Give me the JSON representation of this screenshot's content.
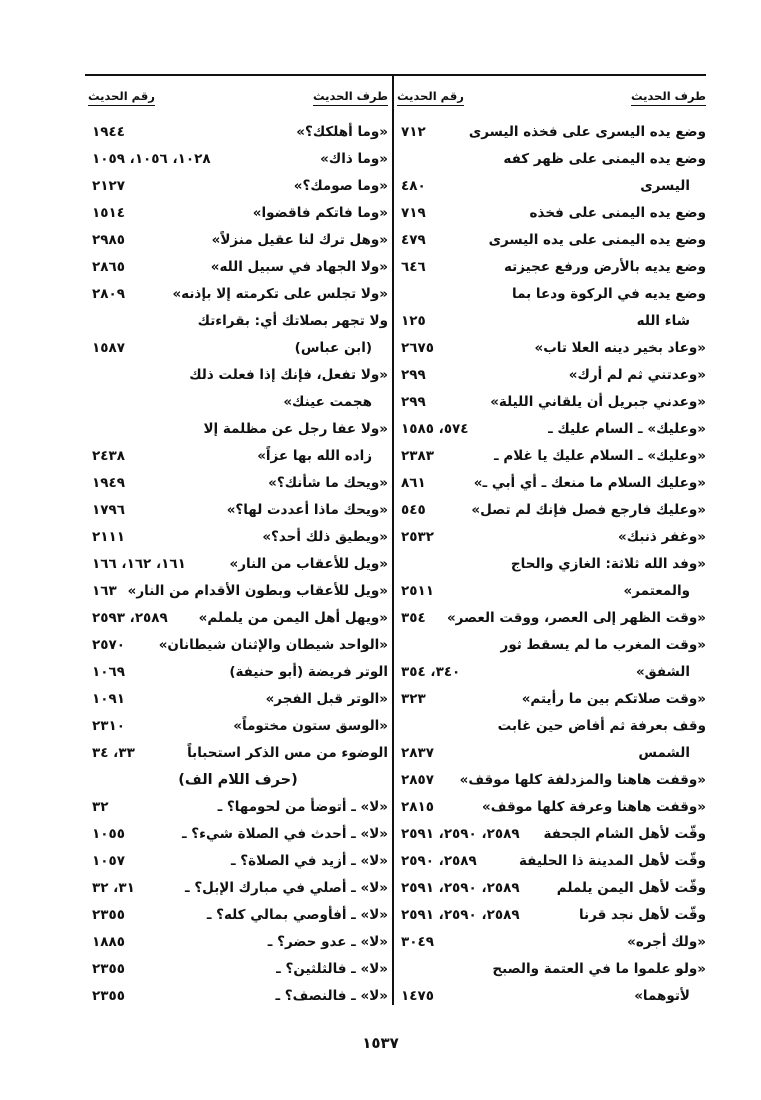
{
  "header": {
    "col_text": "طرف الحديث",
    "col_number": "رقم الحديث"
  },
  "right_column": [
    {
      "lines": [
        "وضع يده اليسرى على فخذه اليسرى"
      ],
      "number": "٧١٢"
    },
    {
      "lines": [
        "وضع يده اليمنى على ظهر كفه",
        "اليسرى"
      ],
      "number": "٤٨٠"
    },
    {
      "lines": [
        "وضع يده اليمنى على فخذه"
      ],
      "number": "٧١٩"
    },
    {
      "lines": [
        "وضع يده اليمنى على يده اليسرى"
      ],
      "number": "٤٧٩"
    },
    {
      "lines": [
        "وضع يديه بالأرض ورفع عجيزته"
      ],
      "number": "٦٤٦"
    },
    {
      "lines": [
        "وضع يديه في الركوة ودعا بما",
        "شاء الله"
      ],
      "number": "١٢٥"
    },
    {
      "lines": [
        "«وعاد بخير دينه العلا تاب»"
      ],
      "number": "٢٦٧٥"
    },
    {
      "lines": [
        "«وعدتني ثم لم أرك»"
      ],
      "number": "٢٩٩"
    },
    {
      "lines": [
        "«وعدني جبريل أن يلقاني الليلة»"
      ],
      "number": "٢٩٩"
    },
    {
      "lines": [
        "«وعليك» ـ السام عليك ـ"
      ],
      "number": "٥٧٤، ١٥٨٥"
    },
    {
      "lines": [
        "«وعليك» ـ السلام عليك يا غلام ـ"
      ],
      "number": "٢٣٨٣"
    },
    {
      "lines": [
        "«وعليك السلام ما منعك ـ أي أبي ـ»"
      ],
      "number": "٨٦١"
    },
    {
      "lines": [
        "«وعليك فارجع فصل فإنك لم تصل»"
      ],
      "number": "٥٤٥"
    },
    {
      "lines": [
        "«وغفر ذنبك»"
      ],
      "number": "٢٥٣٢"
    },
    {
      "lines": [
        "«وفد الله ثلاثة: الغازي والحاج",
        "والمعتمر»"
      ],
      "number": "٢٥١١"
    },
    {
      "lines": [
        "«وقت الظهر إلى العصر، ووقت العصر»"
      ],
      "number": "٣٥٤"
    },
    {
      "lines": [
        "«وقت المغرب ما لم يسقط ثور",
        "الشفق»"
      ],
      "number": "٣٤٠، ٣٥٤"
    },
    {
      "lines": [
        "«وقت صلاتكم بين ما رأيتم»"
      ],
      "number": "٣٢٣"
    },
    {
      "lines": [
        "وقف بعرفة ثم أفاض حين غابت",
        "الشمس"
      ],
      "number": "٢٨٣٧"
    },
    {
      "lines": [
        "«وقفت هاهنا والمزدلفة كلها موقف»"
      ],
      "number": "٢٨٥٧"
    },
    {
      "lines": [
        "«وقفت هاهنا وعرفة كلها موقف»"
      ],
      "number": "٢٨١٥"
    },
    {
      "lines": [
        "وقّت لأهل الشام الجحفة"
      ],
      "number": "٢٥٨٩، ٢٥٩٠، ٢٥٩١"
    },
    {
      "lines": [
        "وقّت لأهل المدينة ذا الحليفة"
      ],
      "number": "٢٥٨٩، ٢٥٩٠"
    },
    {
      "lines": [
        "وقّت لأهل اليمن يلملم"
      ],
      "number": "٢٥٨٩، ٢٥٩٠، ٢٥٩١"
    },
    {
      "lines": [
        "وقّت لأهل نجد قرنا"
      ],
      "number": "٢٥٨٩، ٢٥٩٠، ٢٥٩١"
    },
    {
      "lines": [
        "«ولك أجره»"
      ],
      "number": "٣٠٤٩"
    },
    {
      "lines": [
        "«ولو علموا ما في العتمة والصبح",
        "لأتوهما»"
      ],
      "number": "١٤٧٥"
    }
  ],
  "left_column": [
    {
      "lines": [
        "«وما أهلكك؟»"
      ],
      "number": "١٩٤٤"
    },
    {
      "lines": [
        "«وما ذاك»"
      ],
      "number": "١٠٢٨، ١٠٥٦، ١٠٥٩"
    },
    {
      "lines": [
        "«وما صومك؟»"
      ],
      "number": "٢١٢٧"
    },
    {
      "lines": [
        "«وما فاتكم فاقضوا»"
      ],
      "number": "١٥١٤"
    },
    {
      "lines": [
        "«وهل ترك لنا عقيل منزلاً»"
      ],
      "number": "٢٩٨٥"
    },
    {
      "lines": [
        "«ولا الجهاد في سبيل الله»"
      ],
      "number": "٢٨٦٥"
    },
    {
      "lines": [
        "«ولا تجلس على تكرمته إلا بإذنه»"
      ],
      "number": "٢٨٠٩"
    },
    {
      "lines": [
        "ولا تجهر بصلاتك أي: بقراءتك",
        "(ابن عباس)"
      ],
      "number": "١٥٨٧"
    },
    {
      "lines": [
        "«ولا تفعل، فإنك إذا فعلت ذلك",
        "هجمت عينك»"
      ],
      "number": ""
    },
    {
      "lines": [
        "«ولا عفا رجل عن مظلمة إلا",
        "زاده الله بها عزاً»"
      ],
      "number": "٢٤٣٨"
    },
    {
      "lines": [
        "«ويحك ما شأنك؟»"
      ],
      "number": "١٩٤٩"
    },
    {
      "lines": [
        "«ويحك ماذا أعددت لها؟»"
      ],
      "number": "١٧٩٦"
    },
    {
      "lines": [
        "«ويطيق ذلك أحد؟»"
      ],
      "number": "٢١١١"
    },
    {
      "lines": [
        "«ويل للأعقاب من النار»"
      ],
      "number": "١٦١، ١٦٢، ١٦٦"
    },
    {
      "lines": [
        "«ويل للأعقاب وبطون الأقدام من النار»"
      ],
      "number": "١٦٣"
    },
    {
      "lines": [
        "«ويهل أهل اليمن من يلملم»"
      ],
      "number": "٢٥٨٩، ٢٥٩٣"
    },
    {
      "lines": [
        "«الواحد شيطان والإثنان شيطانان»"
      ],
      "number": "٢٥٧٠"
    },
    {
      "lines": [
        "الوتر فريضة (أبو حنيفة)"
      ],
      "number": "١٠٦٩"
    },
    {
      "lines": [
        "«الوتر قبل الفجر»"
      ],
      "number": "١٠٩١"
    },
    {
      "lines": [
        "«الوسق ستون مختوماً»"
      ],
      "number": "٢٣١٠"
    },
    {
      "lines": [
        "الوضوء من مس الذكر استحباباً"
      ],
      "number": "٣٣، ٣٤"
    },
    {
      "heading": "(حرف اللام الف)"
    },
    {
      "lines": [
        "«لا» ـ أتوضأ من لحومها؟ ـ"
      ],
      "number": "٣٢"
    },
    {
      "lines": [
        "«لا» ـ أحدث في الصلاة شيء؟ ـ"
      ],
      "number": "١٠٥٥"
    },
    {
      "lines": [
        "«لا» ـ أزيد في الصلاة؟ ـ"
      ],
      "number": "١٠٥٧"
    },
    {
      "lines": [
        "«لا» ـ أصلي في مبارك الإبل؟ ـ"
      ],
      "number": "٣١، ٣٢"
    },
    {
      "lines": [
        "«لا» ـ أفأوصي بمالي كله؟ ـ"
      ],
      "number": "٢٣٥٥"
    },
    {
      "lines": [
        "«لا» ـ عدو حضر؟ ـ"
      ],
      "number": "١٨٨٥"
    },
    {
      "lines": [
        "«لا» ـ فالثلثين؟ ـ"
      ],
      "number": "٢٣٥٥"
    },
    {
      "lines": [
        "«لا» ـ فالنصف؟ ـ"
      ],
      "number": "٢٣٥٥"
    }
  ],
  "page_number": "١٥٣٧"
}
